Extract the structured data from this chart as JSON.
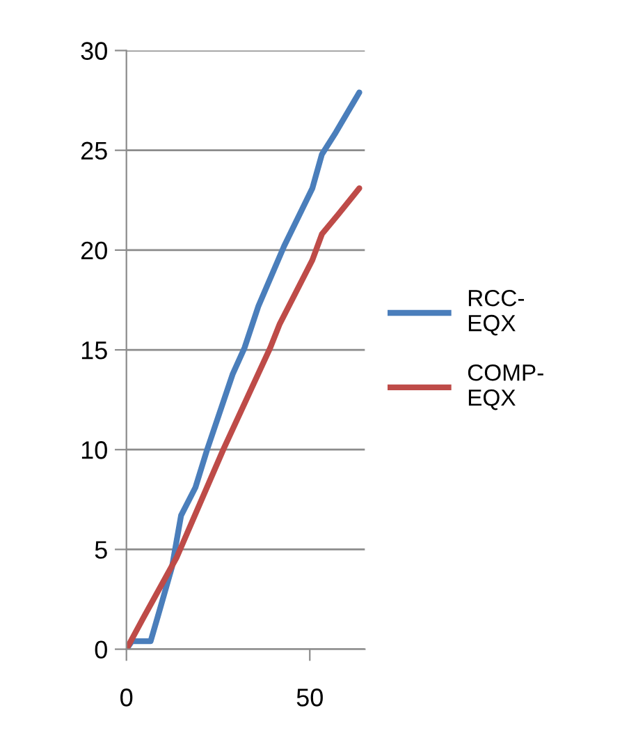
{
  "chart_data": {
    "type": "line",
    "xlim": [
      0,
      65
    ],
    "xticks": [
      0,
      50
    ],
    "ylim": [
      0,
      30
    ],
    "yticks": [
      0,
      5,
      10,
      15,
      20,
      25,
      30
    ],
    "grid": "y",
    "legend": "right",
    "marker": "none",
    "line_style": "solid",
    "series": [
      {
        "name": "RCC-EQX",
        "color": "#4a7ebb",
        "x": [
          0,
          1.5,
          6.6,
          8.5,
          12.4,
          14.9,
          18.8,
          22,
          29,
          32.2,
          36,
          43,
          50.7,
          53.3,
          57.1,
          63.5
        ],
        "values": [
          0,
          0.4,
          0.4,
          1.6,
          4.1,
          6.7,
          8.1,
          10,
          13.8,
          15.1,
          17.2,
          20.2,
          23.1,
          24.8,
          25.9,
          27.9
        ]
      },
      {
        "name": "COMP-EQX",
        "color": "#be4b48",
        "x": [
          0,
          4.7,
          13.7,
          26.4,
          39.2,
          41.8,
          50.7,
          53.3,
          57.8,
          63.5
        ],
        "values": [
          0,
          1.6,
          4.6,
          10,
          15.1,
          16.3,
          19.5,
          20.8,
          21.8,
          23.1
        ]
      }
    ]
  }
}
